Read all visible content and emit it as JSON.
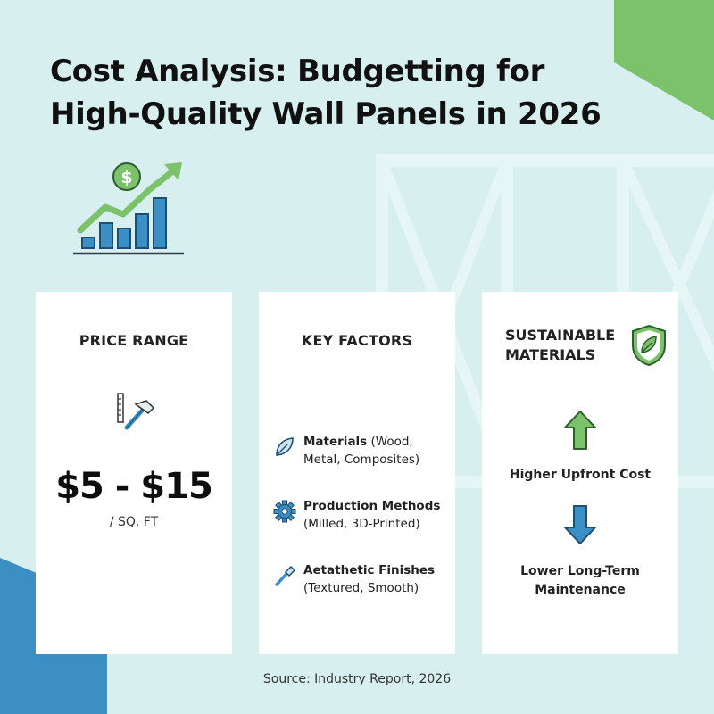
{
  "title": {
    "line1": "Cost Analysis: Budgetting for",
    "line2": "High-Quality Wall Panels in 2026"
  },
  "header_icon": "rising-bar-chart-dollar-icon",
  "cards": {
    "price_range": {
      "title": "PRICE RANGE",
      "icon": "ruler-hammer-icon",
      "value": "$5 - $15",
      "unit": "/ SQ. FT"
    },
    "key_factors": {
      "title": "KEY FACTORS",
      "items": [
        {
          "icon": "leaf-icon",
          "name": "Materials",
          "detail": " (Wood, Metal, Composites)"
        },
        {
          "icon": "gear-icon",
          "name": "Production Methods",
          "detail": " (Milled, 3D-Printed)"
        },
        {
          "icon": "paintbrush-icon",
          "name": "Aetathetic Finishes",
          "detail": " (Textured, Smooth)"
        }
      ]
    },
    "sustainable": {
      "title": "SUSTAINABLE MATERIALS",
      "icon": "leaf-shield-icon",
      "higher": "Higher Upfront Cost",
      "lower": "Lower Long-Term Maintenance"
    }
  },
  "source": "Source: Industry Report, 2026",
  "colors": {
    "background": "#d8efef",
    "accent_green": "#7cc26b",
    "accent_blue": "#3b8fc4",
    "card": "#ffffff"
  }
}
